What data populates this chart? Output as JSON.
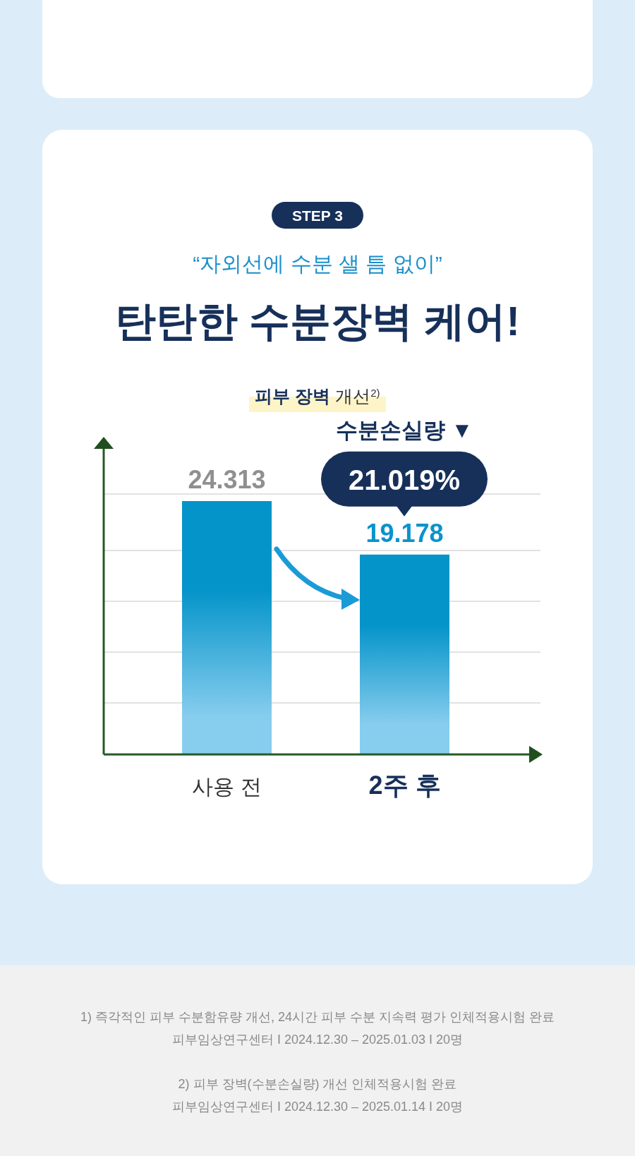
{
  "chart_data": {
    "type": "bar",
    "title": "탄탄한 수분장벽 케어!",
    "subtitle": "“자외선에 수분 샐 틈 없이”",
    "categories": [
      "사용 전",
      "2주 후"
    ],
    "values": [
      24.313,
      19.178
    ],
    "color": "#0494c9",
    "data_labels": true,
    "grid": true,
    "annotations": [
      "STEP 3",
      "**피부 장벽** 개선$^{2)}$",
      "수분손실량 ▼",
      "21.019%",
      "1) 즉각적인 피부 수분함유량 개선, 24시간 피부 수분 지속력 평가 인체적용시험 완료",
      "피부임상연구센터 I 2024.12.30 – 2025.01.03 I 20명",
      "2) 피부 장벽(수분손실량) 개선 인체적용시험 완료",
      "피부임상연구센터 I 2024.12.30 – 2025.01.14 I 20명"
    ]
  }
}
